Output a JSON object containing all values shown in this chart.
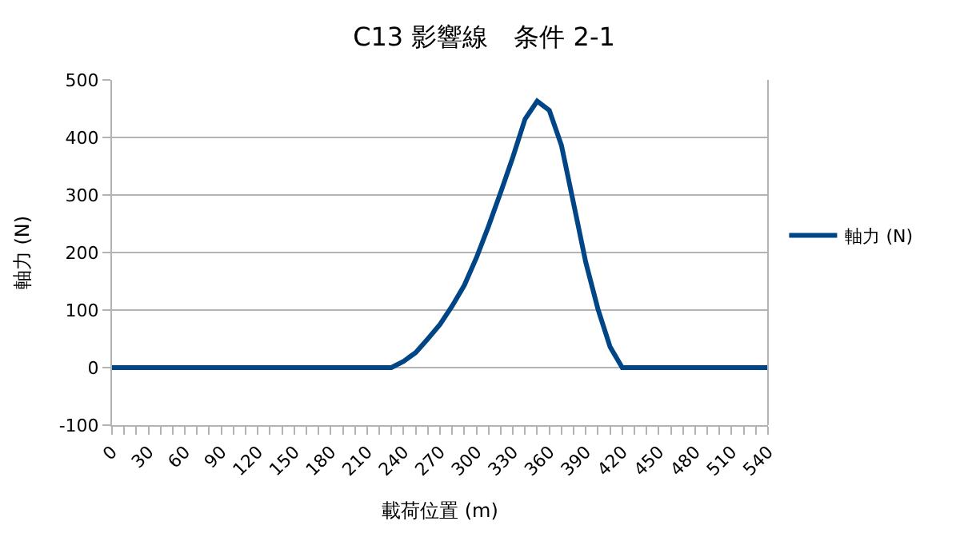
{
  "chart_data": {
    "type": "line",
    "title": "C13 影響線　条件 2-1",
    "xlabel": "載荷位置 (m)",
    "ylabel": "軸力 (N)",
    "x": [
      0,
      10,
      20,
      30,
      40,
      50,
      60,
      70,
      80,
      90,
      100,
      110,
      120,
      130,
      140,
      150,
      160,
      170,
      180,
      190,
      200,
      210,
      220,
      230,
      240,
      250,
      260,
      270,
      280,
      290,
      300,
      310,
      320,
      330,
      340,
      350,
      360,
      370,
      380,
      390,
      400,
      410,
      420,
      430,
      440,
      450,
      460,
      470,
      480,
      490,
      500,
      510,
      520,
      530,
      540
    ],
    "series": [
      {
        "name": "軸力 (N)",
        "color": "#004586",
        "values": [
          0,
          0,
          0,
          0,
          0,
          0,
          0,
          0,
          0,
          0,
          0,
          0,
          0,
          0,
          0,
          0,
          0,
          0,
          0,
          0,
          0,
          0,
          0,
          0,
          11,
          26,
          50,
          75,
          107,
          143,
          191,
          246,
          305,
          366,
          432,
          463,
          447,
          386,
          285,
          183,
          102,
          36,
          0,
          0,
          0,
          0,
          0,
          0,
          0,
          0,
          0,
          0,
          0,
          0,
          0
        ]
      }
    ],
    "xlim": [
      0,
      540
    ],
    "ylim": [
      -100,
      500
    ],
    "xticks": [
      0,
      {
        "value": 10,
        "label": null
      },
      {
        "value": 20,
        "label": null
      },
      30,
      {
        "value": 40,
        "label": null
      },
      {
        "value": 50,
        "label": null
      },
      60,
      {
        "value": 70,
        "label": null
      },
      {
        "value": 80,
        "label": null
      },
      90,
      {
        "value": 100,
        "label": null
      },
      {
        "value": 110,
        "label": null
      },
      120,
      {
        "value": 130,
        "label": null
      },
      {
        "value": 140,
        "label": null
      },
      150,
      {
        "value": 160,
        "label": null
      },
      {
        "value": 170,
        "label": null
      },
      180,
      {
        "value": 190,
        "label": null
      },
      {
        "value": 200,
        "label": null
      },
      210,
      {
        "value": 220,
        "label": null
      },
      {
        "value": 230,
        "label": null
      },
      240,
      {
        "value": 250,
        "label": null
      },
      {
        "value": 260,
        "label": null
      },
      270,
      {
        "value": 280,
        "label": null
      },
      {
        "value": 290,
        "label": null
      },
      300,
      {
        "value": 310,
        "label": null
      },
      {
        "value": 320,
        "label": null
      },
      330,
      {
        "value": 340,
        "label": null
      },
      {
        "value": 350,
        "label": null
      },
      360,
      {
        "value": 370,
        "label": null
      },
      {
        "value": 380,
        "label": null
      },
      390,
      {
        "value": 400,
        "label": null
      },
      {
        "value": 410,
        "label": null
      },
      420,
      {
        "value": 430,
        "label": null
      },
      {
        "value": 440,
        "label": null
      },
      450,
      {
        "value": 460,
        "label": null
      },
      {
        "value": 470,
        "label": null
      },
      480,
      {
        "value": 490,
        "label": null
      },
      {
        "value": 500,
        "label": null
      },
      510,
      {
        "value": 520,
        "label": null
      },
      {
        "value": 530,
        "label": null
      },
      540
    ],
    "yticks": [
      -100,
      0,
      100,
      200,
      300,
      400,
      500
    ],
    "grid": "y",
    "legend": "right",
    "marker": "none",
    "line_style": "solid"
  }
}
